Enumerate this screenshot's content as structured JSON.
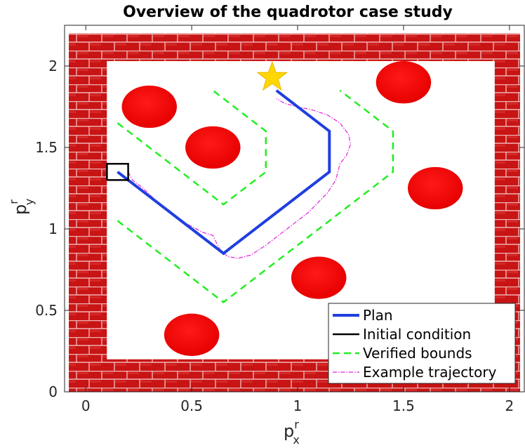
{
  "chart_data": {
    "type": "line",
    "title": "Overview of the quadrotor case study",
    "xlabel": {
      "main": "p",
      "sup": "r",
      "sub": "x"
    },
    "ylabel": {
      "main": "p",
      "sup": "r",
      "sub": "y"
    },
    "xlim": [
      -0.1,
      2.07
    ],
    "ylim": [
      0,
      2.25
    ],
    "xticks": [
      0,
      0.5,
      1,
      1.5,
      2
    ],
    "yticks": [
      0,
      0.5,
      1,
      1.5,
      2
    ],
    "xtick_labels": [
      "0",
      "0.5",
      "1",
      "1.5",
      "2"
    ],
    "ytick_labels": [
      "0",
      "0.5",
      "1",
      "1.5",
      "2"
    ],
    "grid": false,
    "legend_position": "bottom-right",
    "colors": {
      "plan": "#1f3fe0",
      "initial": "#000000",
      "bounds": "#22ee22",
      "trajectory": "#e020e0",
      "obstacle": "#ff0000",
      "brick": "#c81414",
      "mortar": "#f0b4b4",
      "goal": "#ffd700"
    },
    "walls": {
      "outer": {
        "x": [
          -0.08,
          2.05
        ],
        "y": [
          0.0,
          2.2
        ]
      },
      "inner": {
        "x": [
          0.1,
          1.93
        ],
        "y": [
          0.2,
          2.03
        ]
      }
    },
    "obstacles": [
      {
        "cx": 0.3,
        "cy": 1.75,
        "rx": 0.13,
        "ry": 0.13
      },
      {
        "cx": 0.6,
        "cy": 1.5,
        "rx": 0.13,
        "ry": 0.13
      },
      {
        "cx": 1.5,
        "cy": 1.9,
        "rx": 0.13,
        "ry": 0.13
      },
      {
        "cx": 1.65,
        "cy": 1.25,
        "rx": 0.13,
        "ry": 0.13
      },
      {
        "cx": 1.1,
        "cy": 0.7,
        "rx": 0.13,
        "ry": 0.13
      },
      {
        "cx": 0.5,
        "cy": 0.35,
        "rx": 0.13,
        "ry": 0.13
      }
    ],
    "goal": {
      "x": 0.88,
      "y": 1.93
    },
    "series": [
      {
        "name": "Plan",
        "style": "solid",
        "x": [
          0.15,
          0.65,
          1.15,
          1.15,
          0.9
        ],
        "y": [
          1.35,
          0.85,
          1.35,
          1.6,
          1.85
        ]
      },
      {
        "name": "Initial condition",
        "style": "box",
        "x": [
          0.1,
          0.2,
          0.2,
          0.1,
          0.1
        ],
        "y": [
          1.3,
          1.3,
          1.4,
          1.4,
          1.3
        ]
      },
      {
        "name": "Verified bounds",
        "style": "dashed",
        "segments": [
          {
            "x": [
              0.15,
              0.65,
              0.85,
              0.85,
              0.6
            ],
            "y": [
              1.65,
              1.15,
              1.35,
              1.6,
              1.85
            ]
          },
          {
            "x": [
              0.15,
              0.65,
              1.45,
              1.45,
              1.2
            ],
            "y": [
              1.05,
              0.55,
              1.35,
              1.6,
              1.85
            ]
          }
        ]
      },
      {
        "name": "Example trajectory",
        "style": "dashdot",
        "x": [
          0.2,
          0.22,
          0.27,
          0.35,
          0.45,
          0.55,
          0.6,
          0.63,
          0.67,
          0.72,
          0.78,
          0.85,
          0.95,
          1.05,
          1.14,
          1.18,
          1.2,
          1.23,
          1.25,
          1.24,
          1.2,
          1.14,
          1.07,
          1.0,
          0.94,
          0.9
        ],
        "y": [
          1.35,
          1.3,
          1.25,
          1.15,
          1.05,
          0.98,
          0.96,
          0.88,
          0.83,
          0.82,
          0.84,
          0.9,
          1.0,
          1.1,
          1.22,
          1.3,
          1.4,
          1.45,
          1.52,
          1.58,
          1.65,
          1.7,
          1.73,
          1.75,
          1.77,
          1.8
        ]
      }
    ]
  }
}
